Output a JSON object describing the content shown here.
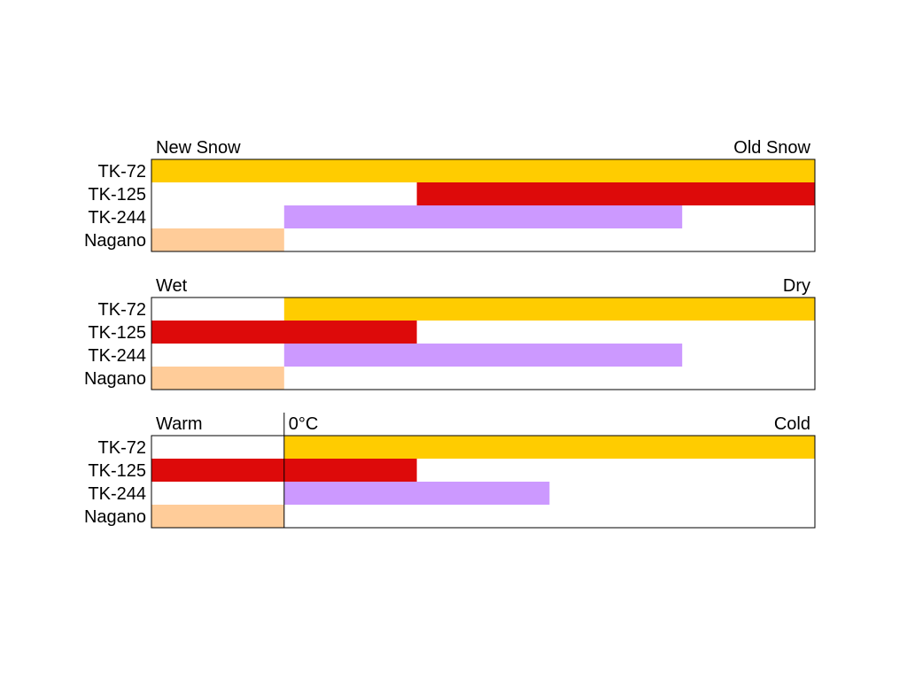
{
  "chart_data": [
    {
      "type": "bar",
      "orientation": "horizontal-range",
      "scale_labels": [
        {
          "text": "New Snow",
          "position": 0,
          "anchor": "start"
        },
        {
          "text": "Old Snow",
          "position": 5,
          "anchor": "end"
        }
      ],
      "categories": [
        "TK-72",
        "TK-125",
        "TK-244",
        "Nagano"
      ],
      "ranges": [
        [
          0,
          5
        ],
        [
          2,
          5
        ],
        [
          1,
          4
        ],
        [
          0,
          1
        ]
      ],
      "xlim": [
        0,
        5
      ]
    },
    {
      "type": "bar",
      "orientation": "horizontal-range",
      "scale_labels": [
        {
          "text": "Wet",
          "position": 0,
          "anchor": "start"
        },
        {
          "text": "Dry",
          "position": 5,
          "anchor": "end"
        }
      ],
      "categories": [
        "TK-72",
        "TK-125",
        "TK-244",
        "Nagano"
      ],
      "ranges": [
        [
          1,
          5
        ],
        [
          0,
          2
        ],
        [
          1,
          4
        ],
        [
          0,
          1
        ]
      ],
      "xlim": [
        0,
        5
      ]
    },
    {
      "type": "bar",
      "orientation": "horizontal-range",
      "scale_labels": [
        {
          "text": "Warm",
          "position": 0,
          "anchor": "start"
        },
        {
          "text": "0°C",
          "position": 1,
          "anchor": "start"
        },
        {
          "text": "Cold",
          "position": 5,
          "anchor": "end"
        }
      ],
      "reference_line": 1,
      "categories": [
        "TK-72",
        "TK-125",
        "TK-244",
        "Nagano"
      ],
      "ranges": [
        [
          1,
          5
        ],
        [
          0,
          2
        ],
        [
          1,
          3
        ],
        [
          0,
          1
        ]
      ],
      "xlim": [
        0,
        5
      ]
    }
  ],
  "colors": {
    "TK-72": "#ffcc00",
    "TK-125": "#dd0a0a",
    "TK-244": "#cc99ff",
    "Nagano": "#ffcc99"
  }
}
